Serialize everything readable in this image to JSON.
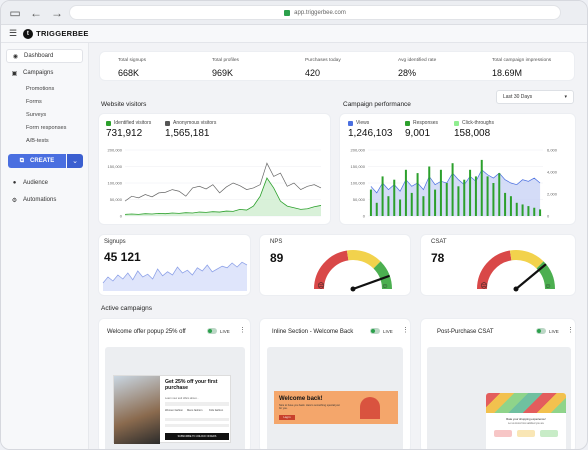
{
  "browser": {
    "url": "app.triggerbee.com"
  },
  "app": {
    "logo_text": "TRIGGERBEE"
  },
  "sidebar": {
    "items": [
      {
        "label": "Dashboard",
        "icon": "eye-icon"
      },
      {
        "label": "Campaigns",
        "icon": "campaign-icon"
      }
    ],
    "sub_items": [
      "Promotions",
      "Forms",
      "Surveys",
      "Form responses",
      "A/B-tests"
    ],
    "create_label": "CREATE",
    "bottom_items": [
      {
        "label": "Audience",
        "icon": "person-icon"
      },
      {
        "label": "Automations",
        "icon": "gear-icon"
      }
    ]
  },
  "stats": [
    {
      "label": "Total signups",
      "value": "668K"
    },
    {
      "label": "Total profiles",
      "value": "969K"
    },
    {
      "label": "Purchases today",
      "value": "420"
    },
    {
      "label": "Avg identified rate",
      "value": "28%"
    },
    {
      "label": "Total campaign impressions",
      "value": "18.69M"
    }
  ],
  "date_filter": "Last 30 Days",
  "website_visitors": {
    "title": "Website visitors",
    "legend": [
      {
        "label": "Identified visitors",
        "value": "731,912",
        "color": "#2ca02c"
      },
      {
        "label": "Anonymous visitors",
        "value": "1,565,181",
        "color": "#555555"
      }
    ]
  },
  "campaign_performance": {
    "title": "Campaign performance",
    "legend": [
      {
        "label": "Views",
        "value": "1,246,103",
        "color": "#4a6fe0"
      },
      {
        "label": "Responses",
        "value": "9,001",
        "color": "#2ca02c"
      },
      {
        "label": "Click-throughs",
        "value": "158,008",
        "color": "#90ee90"
      }
    ]
  },
  "chart_data": [
    {
      "type": "line",
      "title": "Website visitors",
      "ylim": [
        0,
        200000
      ],
      "yticks": [
        "200,000",
        "150,000",
        "100,000",
        "50,000",
        "0"
      ],
      "series": [
        {
          "name": "Identified visitors",
          "values": [
            5000,
            6000,
            5000,
            7000,
            6000,
            8000,
            7000,
            9000,
            8000,
            10000,
            9000,
            12000,
            11000,
            13000,
            12000,
            15000,
            14000,
            20000,
            18000,
            30000,
            60000,
            115000,
            85000,
            45000,
            30000,
            25000,
            20000,
            22000,
            28000,
            32000
          ]
        },
        {
          "name": "Anonymous visitors",
          "values": [
            45000,
            60000,
            55000,
            65000,
            58000,
            70000,
            72000,
            80000,
            75000,
            60000,
            85000,
            90000,
            82000,
            95000,
            70000,
            88000,
            100000,
            92000,
            80000,
            85000,
            95000,
            160000,
            120000,
            130000,
            90000,
            100000,
            80000,
            90000,
            95000,
            85000
          ]
        }
      ]
    },
    {
      "type": "bar",
      "title": "Campaign performance",
      "ylim": [
        0,
        200000
      ],
      "yticks": [
        "200,000",
        "150,000",
        "100,000",
        "50,000",
        "0"
      ],
      "y2ticks": [
        "6,000",
        "4,000",
        "2,000",
        "0"
      ],
      "series": [
        {
          "name": "Views",
          "values": [
            90000,
            70000,
            100000,
            80000,
            95000,
            75000,
            110000,
            90000,
            100000,
            80000,
            120000,
            95000,
            105000,
            100000,
            130000,
            110000,
            95000,
            120000,
            105000,
            140000,
            125000,
            115000,
            130000,
            110000,
            100000,
            95000,
            110000,
            105000,
            115000,
            100000
          ]
        },
        {
          "name": "Responses",
          "values": [
            80000,
            40000,
            120000,
            60000,
            110000,
            50000,
            140000,
            70000,
            130000,
            60000,
            150000,
            80000,
            140000,
            100000,
            160000,
            90000,
            110000,
            140000,
            120000,
            170000,
            120000,
            100000,
            130000,
            70000,
            60000,
            40000,
            35000,
            30000,
            25000,
            20000
          ]
        }
      ]
    },
    {
      "type": "area",
      "title": "Signups",
      "series": [
        {
          "name": "Signups",
          "values": [
            20,
            35,
            25,
            40,
            30,
            45,
            28,
            50,
            35,
            42,
            30,
            55,
            38,
            48,
            40,
            60,
            45,
            52,
            40,
            58,
            50,
            65,
            48,
            55,
            62,
            58,
            70,
            60,
            72,
            65
          ]
        }
      ]
    }
  ],
  "signups": {
    "title": "Signups",
    "value": "45 121"
  },
  "nps": {
    "title": "NPS",
    "value": "89",
    "level": 0.89
  },
  "csat": {
    "title": "CSAT",
    "value": "78",
    "level": 0.78
  },
  "active_campaigns": {
    "title": "Active campaigns",
    "live_label": "LIVE",
    "cards": [
      {
        "title": "Welcome offer popup 25% off"
      },
      {
        "title": "Inline Section - Welcome Back"
      },
      {
        "title": "Post-Purchase CSAT"
      }
    ],
    "preview1": {
      "heading": "Get 25% off your first purchase",
      "body": "Learn new and offers about...",
      "opt1": "Women fashion",
      "opt2": "Mens fashion",
      "opt3": "Kids fashion",
      "btn": "SUBSCRIBE TO UNLOCK OFFERS"
    },
    "preview2": {
      "heading": "Welcome back!",
      "body": "Nice to have you back. Here's something special just for you.",
      "btn": "Log in"
    },
    "preview3": {
      "heading": "Rate your shopping experience!",
      "sub": "Let us know how satisfied you are"
    }
  }
}
